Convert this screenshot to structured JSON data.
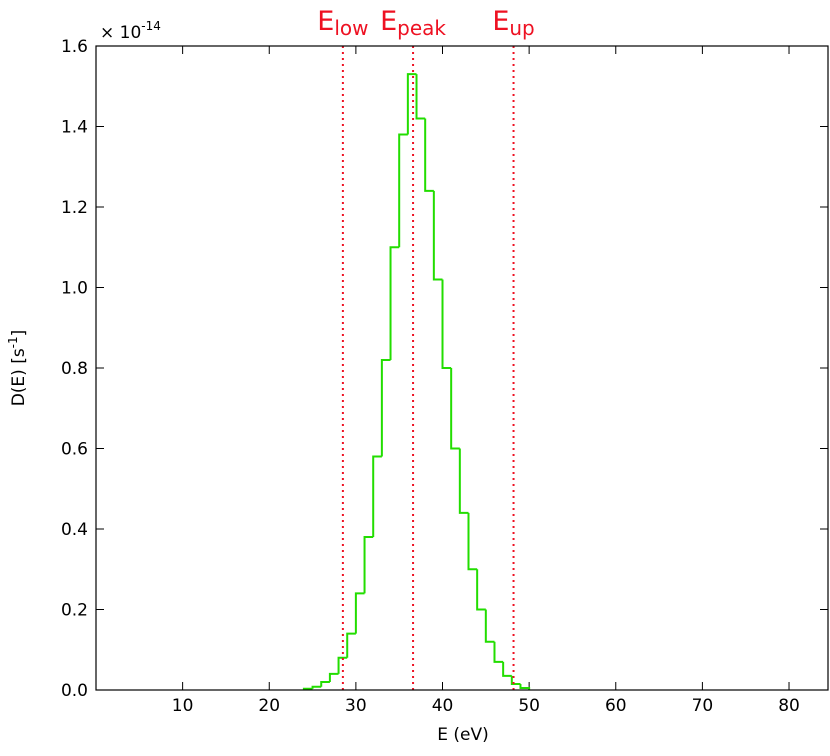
{
  "chart_data": {
    "type": "histogram",
    "xlabel": "E (eV)",
    "ylabel": {
      "text": "D(E) [s",
      "superscript": "-1",
      "suffix": "]"
    },
    "y_offset": {
      "text": "× 10",
      "superscript": "-14"
    },
    "bins": [
      24,
      25,
      26,
      27,
      28,
      29,
      30,
      31,
      32,
      33,
      34,
      35,
      36,
      37,
      38,
      39,
      40,
      41,
      42,
      43,
      44,
      45,
      46,
      47,
      48,
      49,
      50
    ],
    "values": [
      0.003,
      0.008,
      0.02,
      0.04,
      0.08,
      0.14,
      0.24,
      0.38,
      0.58,
      0.82,
      1.1,
      1.38,
      1.53,
      1.42,
      1.24,
      1.02,
      0.8,
      0.6,
      0.44,
      0.3,
      0.2,
      0.12,
      0.07,
      0.035,
      0.015,
      0.005
    ],
    "color": "#22dd00",
    "xlim": [
      0,
      84.5
    ],
    "ylim": [
      0,
      1.6
    ],
    "xticks": [
      10,
      20,
      30,
      40,
      50,
      60,
      70,
      80
    ],
    "yticks": [
      {
        "value": 0,
        "label": "0.0"
      },
      0.2,
      0.4,
      0.6,
      0.8,
      {
        "value": 1,
        "label": "1.0"
      },
      1.2,
      1.4,
      1.6
    ],
    "annotations": [
      {
        "text": "E",
        "subscript": "low",
        "x": 28.5
      },
      {
        "text": "E",
        "subscript": "peak",
        "x": 36.6
      },
      {
        "text": "E",
        "subscript": "up",
        "x": 48.2
      }
    ],
    "annotation_color": "#ee1122"
  }
}
